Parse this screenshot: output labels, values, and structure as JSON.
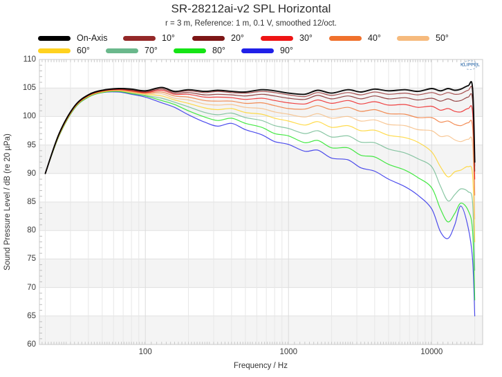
{
  "title": "SR-28212ai-v2 SPL Horizontal",
  "subtitle": "r = 3 m,  Reference: 1 m, 0.1 V, smoothed 12/oct.",
  "watermark_text": "KLIPPEL",
  "axes": {
    "x_label": "Frequency / Hz",
    "y_label": "Sound Pressure Level / dB (re 20 µPa)"
  },
  "chart_data": {
    "type": "line",
    "title": "SR-28212ai-v2 SPL Horizontal",
    "subtitle": "r = 3 m,  Reference: 1 m, 0.1 V, smoothed 12/oct.",
    "xlabel": "Frequency / Hz",
    "ylabel": "Sound Pressure Level / dB (re 20 µPa)",
    "x_scale": "log",
    "x_range_hz": [
      18.2,
      22700
    ],
    "ylim": [
      60,
      110
    ],
    "y_ticks": [
      110,
      105,
      100,
      95,
      90,
      85,
      80,
      75,
      70,
      65,
      60
    ],
    "x_ticks_labeled": [
      100,
      1000,
      10000
    ],
    "grid": true,
    "legend_position": "top",
    "band_colors": {
      "even": "#f4f4f4",
      "odd": "#ffffff"
    },
    "x": [
      20,
      25,
      32,
      40,
      50,
      65,
      80,
      100,
      130,
      160,
      200,
      260,
      320,
      400,
      500,
      650,
      800,
      1000,
      1300,
      1600,
      2000,
      2600,
      3200,
      4000,
      5000,
      6500,
      8000,
      10000,
      11500,
      13000,
      14500,
      16000,
      18000,
      19300,
      20000
    ],
    "series": [
      {
        "name": "On-Axis",
        "color": "#000000",
        "values": [
          90.0,
          97.0,
          101.8,
          103.8,
          104.6,
          104.9,
          104.8,
          104.5,
          105.1,
          104.4,
          104.7,
          104.4,
          104.6,
          104.4,
          104.3,
          104.7,
          104.5,
          104.1,
          103.9,
          104.6,
          104.1,
          104.7,
          104.3,
          104.8,
          104.5,
          104.7,
          104.4,
          104.9,
          104.5,
          104.9,
          104.6,
          104.8,
          105.4,
          105.0,
          92.0
        ]
      },
      {
        "name": "10°",
        "color": "#942828",
        "values": [
          90.0,
          97.0,
          101.8,
          103.8,
          104.6,
          104.8,
          104.7,
          104.4,
          105.0,
          104.3,
          104.5,
          104.2,
          104.4,
          104.2,
          104.1,
          104.4,
          104.2,
          103.8,
          103.5,
          104.2,
          103.7,
          104.2,
          103.8,
          104.3,
          103.9,
          104.1,
          103.8,
          104.2,
          103.8,
          104.2,
          103.9,
          104.0,
          104.6,
          104.2,
          91.3
        ]
      },
      {
        "name": "20°",
        "color": "#7d1616",
        "values": [
          90.0,
          96.9,
          101.7,
          103.7,
          104.5,
          104.8,
          104.6,
          104.3,
          104.8,
          104.1,
          104.2,
          103.8,
          103.9,
          103.8,
          103.6,
          103.9,
          103.6,
          103.2,
          103.0,
          103.7,
          103.1,
          103.6,
          103.1,
          103.6,
          103.1,
          103.3,
          102.9,
          103.2,
          102.7,
          103.1,
          102.7,
          102.8,
          103.4,
          102.9,
          90.4
        ]
      },
      {
        "name": "30°",
        "color": "#ee1414",
        "values": [
          90.0,
          96.9,
          101.7,
          103.7,
          104.5,
          104.7,
          104.5,
          104.2,
          104.6,
          103.9,
          103.9,
          103.4,
          103.4,
          103.3,
          103.0,
          103.2,
          102.8,
          102.4,
          102.2,
          102.9,
          102.3,
          102.8,
          102.2,
          102.6,
          102.0,
          102.1,
          101.6,
          101.8,
          101.1,
          101.4,
          100.9,
          100.8,
          101.4,
          100.8,
          89.0
        ]
      },
      {
        "name": "40°",
        "color": "#f0712c",
        "values": [
          90.0,
          96.8,
          101.6,
          103.6,
          104.4,
          104.7,
          104.4,
          104.1,
          104.3,
          103.6,
          103.4,
          102.8,
          102.7,
          102.7,
          102.3,
          102.4,
          101.9,
          101.4,
          101.3,
          101.9,
          101.2,
          101.6,
          100.9,
          101.2,
          100.5,
          100.4,
          99.8,
          99.8,
          99.0,
          99.2,
          98.6,
          98.4,
          98.9,
          98.2,
          86.2
        ]
      },
      {
        "name": "50°",
        "color": "#f6ba7d",
        "values": [
          90.0,
          96.8,
          101.6,
          103.6,
          104.4,
          104.6,
          104.3,
          104.0,
          104.0,
          103.2,
          102.9,
          102.2,
          102.0,
          102.1,
          101.6,
          101.4,
          100.8,
          100.4,
          99.9,
          100.5,
          99.7,
          100.0,
          99.2,
          99.4,
          98.6,
          98.4,
          97.7,
          97.5,
          96.5,
          96.6,
          95.9,
          95.6,
          96.0,
          95.1,
          82.0
        ]
      },
      {
        "name": "60°",
        "color": "#ffd21f",
        "values": [
          90.0,
          96.7,
          101.5,
          103.5,
          104.3,
          104.5,
          104.2,
          103.9,
          103.6,
          102.9,
          102.3,
          101.5,
          101.2,
          101.4,
          100.7,
          100.4,
          99.7,
          99.2,
          98.5,
          99.1,
          98.1,
          98.4,
          97.5,
          97.6,
          96.7,
          96.3,
          95.5,
          93.8,
          91.2,
          89.4,
          90.3,
          90.6,
          91.2,
          89.8,
          78.0
        ]
      },
      {
        "name": "70°",
        "color": "#6ab88c",
        "values": [
          90.0,
          96.7,
          101.5,
          103.5,
          104.3,
          104.5,
          104.1,
          103.7,
          103.2,
          102.5,
          101.7,
          100.7,
          100.3,
          100.6,
          99.8,
          99.3,
          98.4,
          97.9,
          97.0,
          97.5,
          96.4,
          96.6,
          95.5,
          95.4,
          94.3,
          93.6,
          92.6,
          91.2,
          87.8,
          85.2,
          86.3,
          87.3,
          86.8,
          85.0,
          73.0
        ]
      },
      {
        "name": "80°",
        "color": "#15e415",
        "values": [
          90.0,
          96.6,
          101.4,
          103.4,
          104.2,
          104.4,
          104.0,
          103.6,
          102.8,
          102.1,
          101.0,
          99.9,
          99.3,
          99.7,
          98.8,
          98.1,
          97.0,
          96.6,
          95.4,
          95.8,
          94.5,
          94.5,
          93.2,
          92.9,
          91.6,
          90.6,
          89.3,
          87.5,
          83.8,
          81.5,
          83.0,
          84.8,
          83.5,
          80.0,
          67.8
        ]
      },
      {
        "name": "90°",
        "color": "#2020e8",
        "values": [
          90.0,
          96.6,
          101.4,
          103.4,
          104.2,
          104.3,
          103.9,
          103.4,
          102.4,
          101.6,
          100.3,
          99.0,
          98.3,
          98.8,
          97.7,
          96.8,
          95.6,
          95.1,
          93.9,
          94.1,
          92.7,
          92.4,
          91.0,
          90.4,
          89.0,
          87.7,
          86.2,
          83.8,
          79.8,
          78.6,
          81.0,
          84.3,
          80.5,
          75.0,
          65.0
        ]
      }
    ]
  }
}
